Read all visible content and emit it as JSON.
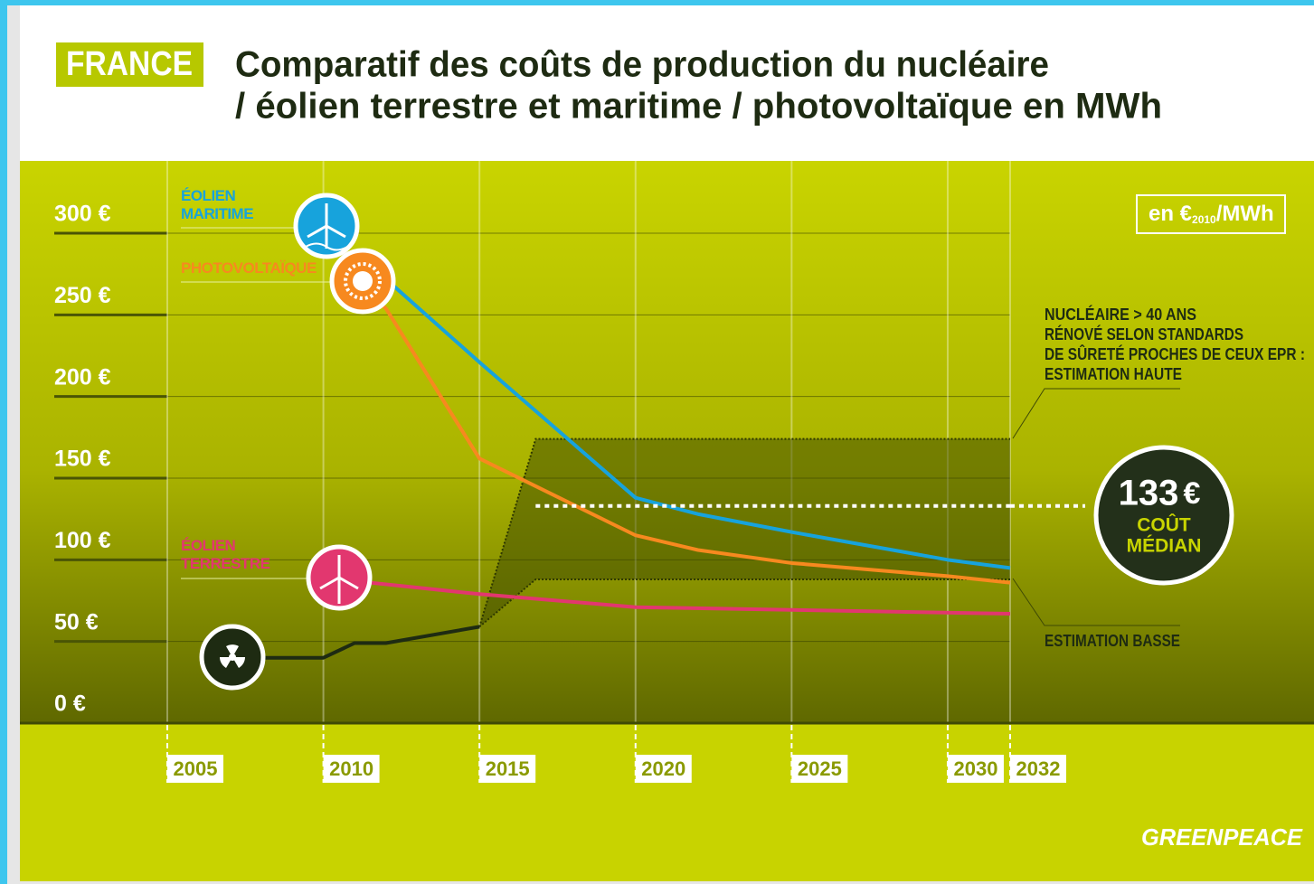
{
  "chart_data": {
    "type": "line",
    "badge": "FRANCE",
    "title": [
      "Comparatif des coûts de production du nucléaire",
      "/ éolien terrestre et maritime / photovoltaïque en MWh"
    ],
    "unit": {
      "prefix": "en €",
      "sub": "2010",
      "suffix": "/MWh"
    },
    "xlim": [
      2005,
      2032
    ],
    "xticks": [
      2005,
      2010,
      2015,
      2020,
      2025,
      2030,
      2032
    ],
    "ylim": [
      0,
      300
    ],
    "yticks": [
      {
        "value": 0,
        "label": "0 €"
      },
      {
        "value": 50,
        "label": "50 €"
      },
      {
        "value": 100,
        "label": "100 €"
      },
      {
        "value": 150,
        "label": "150 €"
      },
      {
        "value": 200,
        "label": "200 €"
      },
      {
        "value": 250,
        "label": "250 €"
      },
      {
        "value": 300,
        "label": "300 €"
      }
    ],
    "grid": true,
    "series": [
      {
        "name": "ÉOLIEN MARITIME",
        "color": "#17a3dc",
        "x": [
          2011,
          2012,
          2015,
          2020,
          2022,
          2025,
          2030,
          2032
        ],
        "values": [
          286,
          272,
          221,
          138,
          128,
          117,
          100,
          95
        ]
      },
      {
        "name": "PHOTOVOLTAÏQUE",
        "color": "#f7891f",
        "x": [
          2011,
          2012,
          2015,
          2020,
          2022,
          2025,
          2030,
          2032
        ],
        "values": [
          270,
          254,
          162,
          115,
          106,
          98,
          90,
          86
        ]
      },
      {
        "name": "ÉOLIEN TERRESTRE",
        "color": "#e2376f",
        "x": [
          2011,
          2015,
          2020,
          2032
        ],
        "values": [
          87,
          79,
          71,
          67
        ]
      },
      {
        "color": "#1e2b12",
        "x": [
          2008,
          2010,
          2011,
          2012,
          2015
        ],
        "values": [
          40,
          40,
          49,
          49,
          59
        ]
      }
    ],
    "band": {
      "x": [
        2015,
        2016.8,
        2032
      ],
      "high": [
        59,
        174,
        174
      ],
      "low": [
        59,
        88,
        88
      ]
    },
    "median": {
      "x": [
        2016.8,
        2032
      ],
      "value": 133,
      "label": "133",
      "currency": "€",
      "text": [
        "COÛT",
        "MÉDIAN"
      ]
    },
    "notes": {
      "high": [
        "NUCLÉAIRE > 40 ANS",
        "RÉNOVÉ SELON STANDARDS",
        "DE SÛRETÉ PROCHES DE CEUX EPR :",
        "ESTIMATION HAUTE"
      ],
      "low": "ESTIMATION BASSE"
    },
    "brand": "GREENPEACE"
  }
}
